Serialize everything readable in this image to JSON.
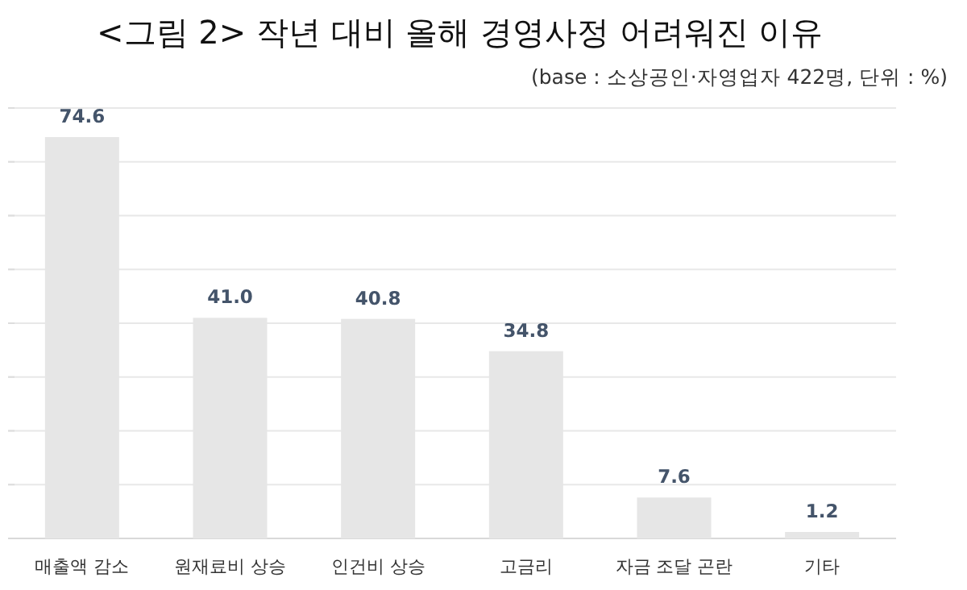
{
  "chart_data": {
    "type": "bar",
    "title": "<그림 2> 작년 대비 올해 경영사정 어려워진 이유",
    "subtitle": "(base : 소상공인·자영업자 422명, 단위 : %)",
    "categories": [
      "매출액 감소",
      "원재료비 상승",
      "인건비 상승",
      "고금리",
      "자금 조달 곤란",
      "기타"
    ],
    "values": [
      74.6,
      41.0,
      40.8,
      34.8,
      7.6,
      1.2
    ],
    "value_labels": [
      "74.6",
      "41.0",
      "40.8",
      "34.8",
      "7.6",
      "1.2"
    ],
    "color": "#e6e6e6",
    "ylim": [
      0,
      80
    ],
    "yticks": [
      {
        "value": 0,
        "label": null
      },
      {
        "value": 10,
        "label": null
      },
      {
        "value": 20,
        "label": null
      },
      {
        "value": 30,
        "label": null
      },
      {
        "value": 40,
        "label": null
      },
      {
        "value": 50,
        "label": null
      },
      {
        "value": 60,
        "label": null
      },
      {
        "value": 70,
        "label": null
      },
      {
        "value": 80,
        "label": null
      }
    ],
    "grid": "y"
  }
}
